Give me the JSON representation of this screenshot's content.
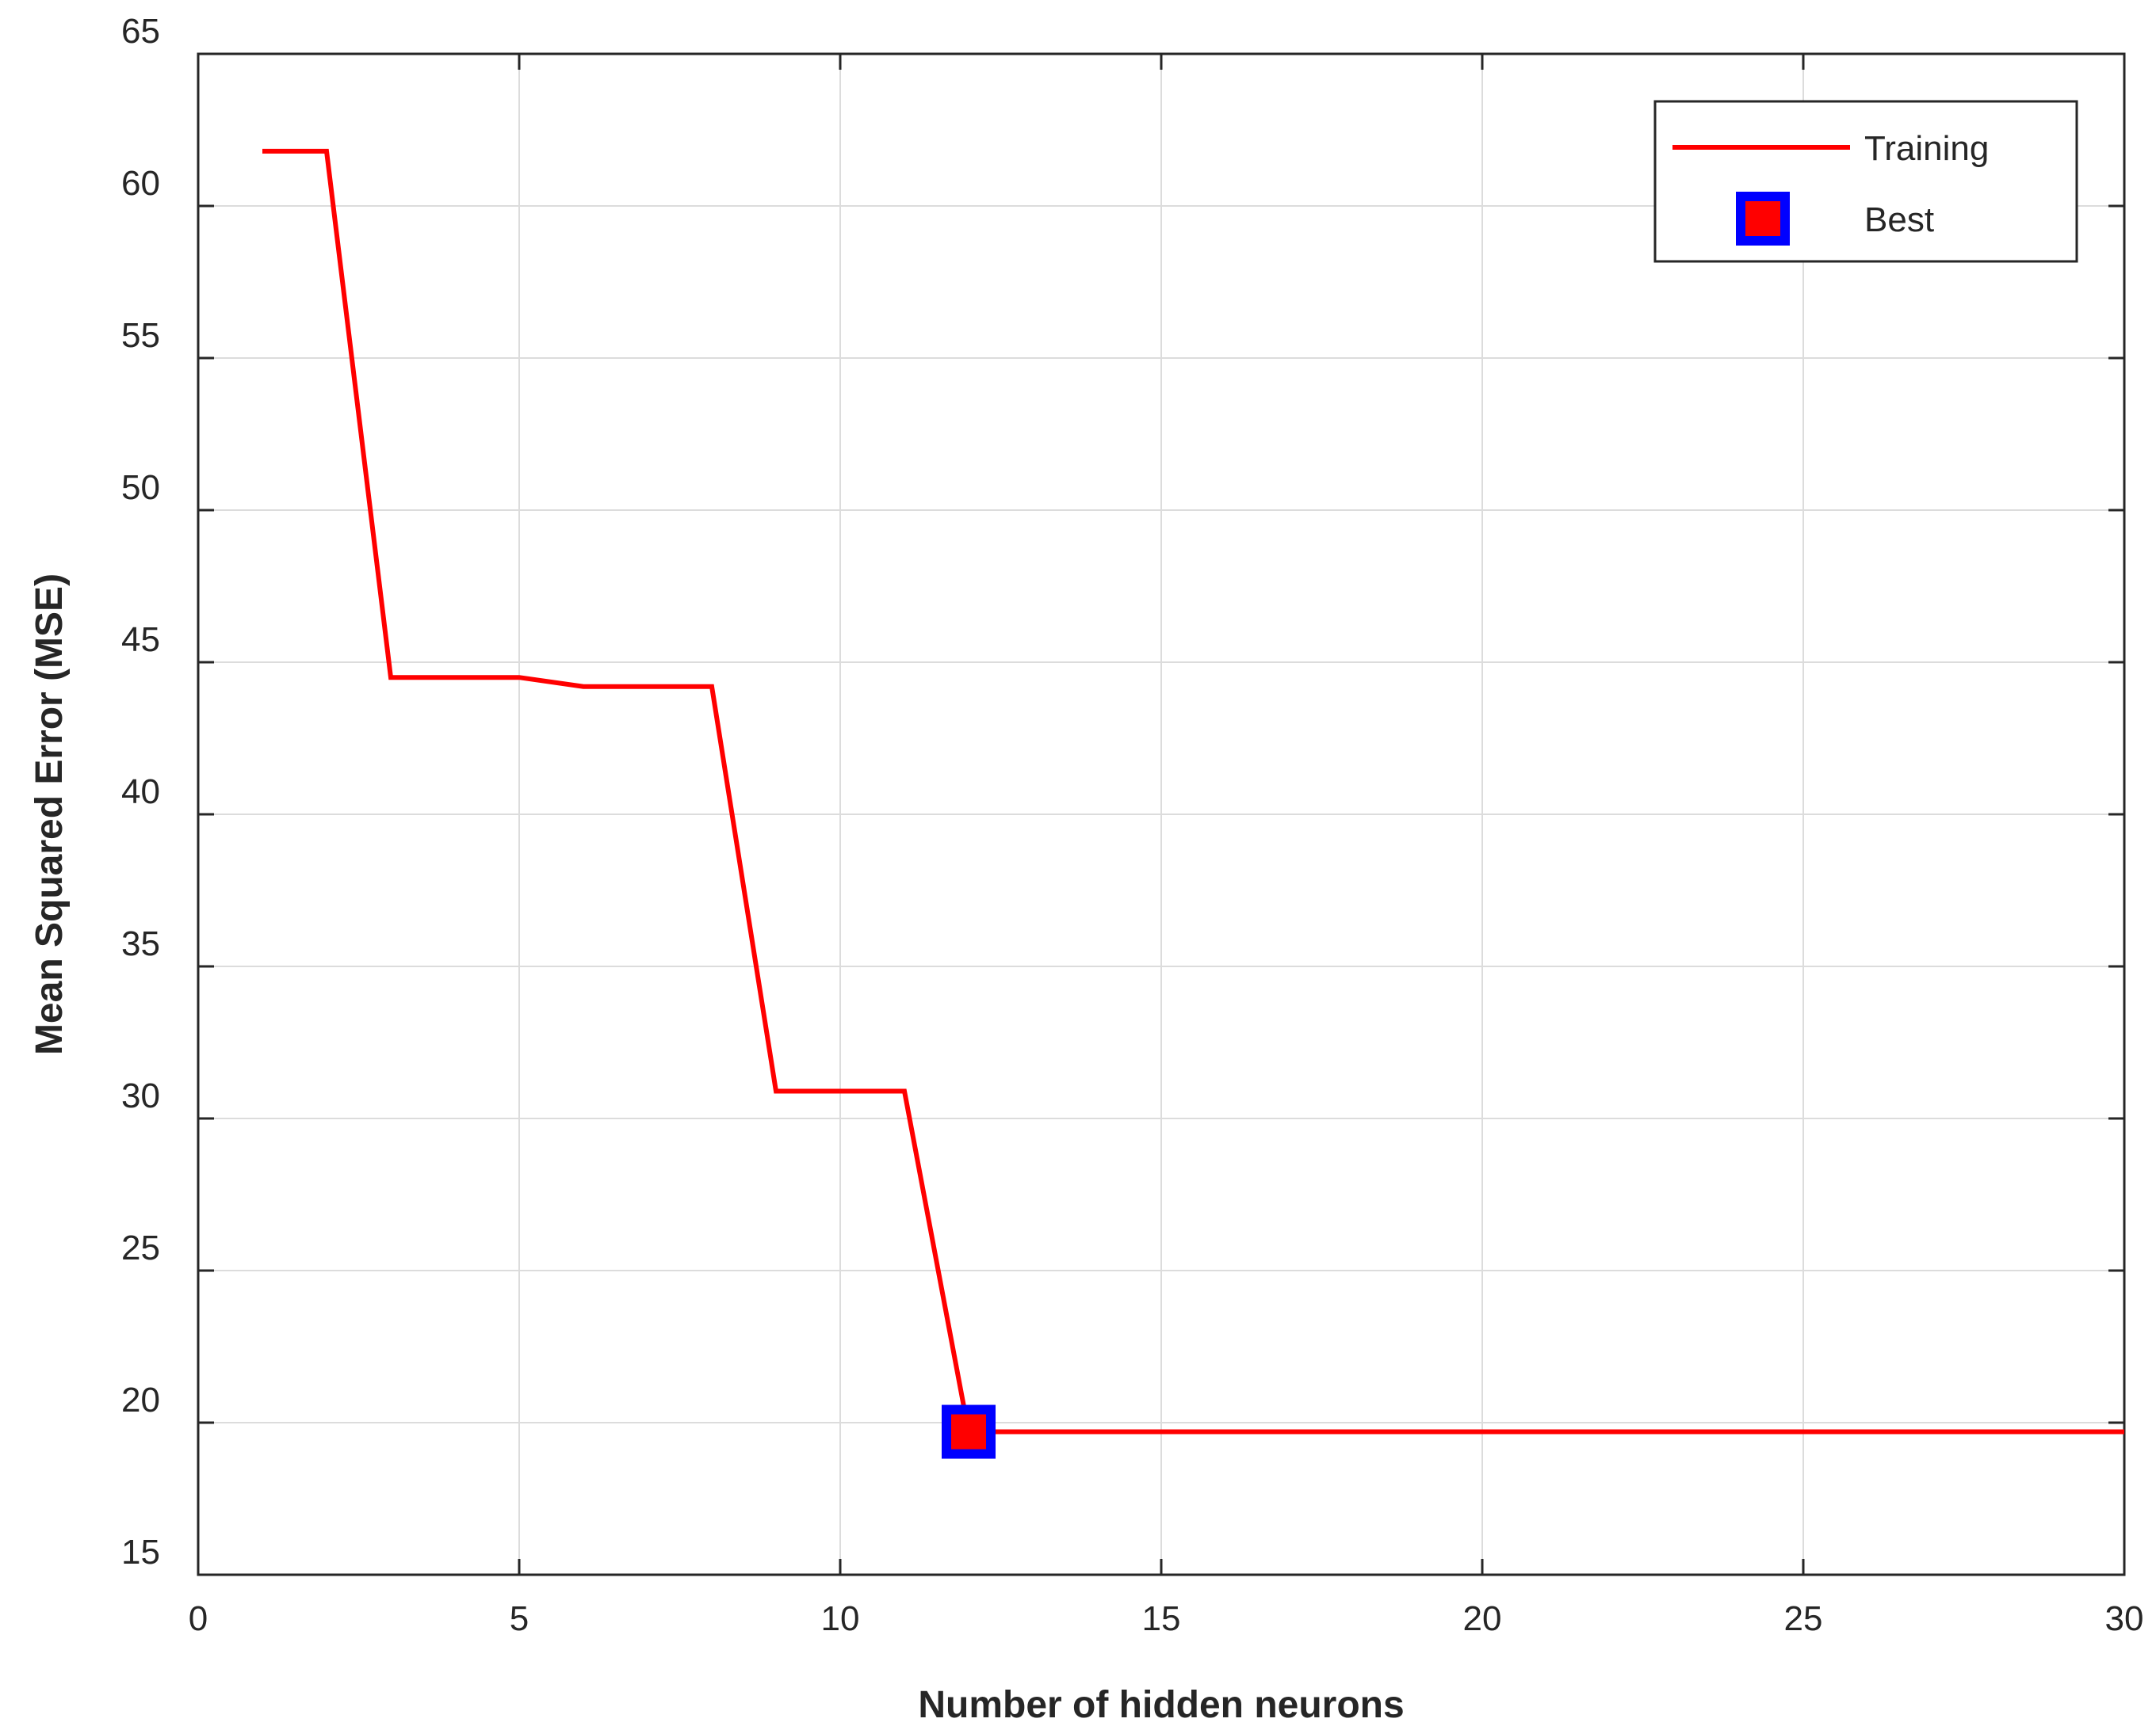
{
  "chart_data": {
    "type": "line",
    "title": "",
    "xlabel": "Number of hidden neurons",
    "ylabel": "Mean Squared Error (MSE)",
    "xlim": [
      0,
      30
    ],
    "ylim": [
      15,
      65
    ],
    "xticks": [
      0,
      5,
      10,
      15,
      20,
      25,
      30
    ],
    "yticks": [
      15,
      20,
      25,
      30,
      35,
      40,
      45,
      50,
      55,
      60,
      65
    ],
    "xtick_labels": [
      "0",
      "5",
      "10",
      "15",
      "20",
      "25",
      "30"
    ],
    "ytick_labels": [
      "15",
      "20",
      "25",
      "30",
      "35",
      "40",
      "45",
      "50",
      "55",
      "60",
      "65"
    ],
    "grid": true,
    "legend_position": "top-right",
    "series": [
      {
        "name": "Training",
        "color": "#ff0000",
        "x": [
          1,
          2,
          3,
          4,
          5,
          6,
          7,
          8,
          9,
          10,
          11,
          12,
          13,
          14,
          15,
          16,
          17,
          18,
          19,
          20,
          21,
          22,
          23,
          24,
          25,
          26,
          27,
          28,
          29,
          30
        ],
        "y": [
          61.8,
          61.8,
          44.5,
          44.5,
          44.5,
          44.2,
          44.2,
          44.2,
          30.9,
          30.9,
          30.9,
          19.7,
          19.7,
          19.7,
          19.7,
          19.7,
          19.7,
          19.7,
          19.7,
          19.7,
          19.7,
          19.7,
          19.7,
          19.7,
          19.7,
          19.7,
          19.7,
          19.7,
          19.7,
          19.7
        ]
      }
    ],
    "best_point": {
      "name": "Best",
      "x": 12,
      "y": 19.7,
      "fill_color": "#ff0000",
      "edge_color": "#0000ff"
    }
  }
}
